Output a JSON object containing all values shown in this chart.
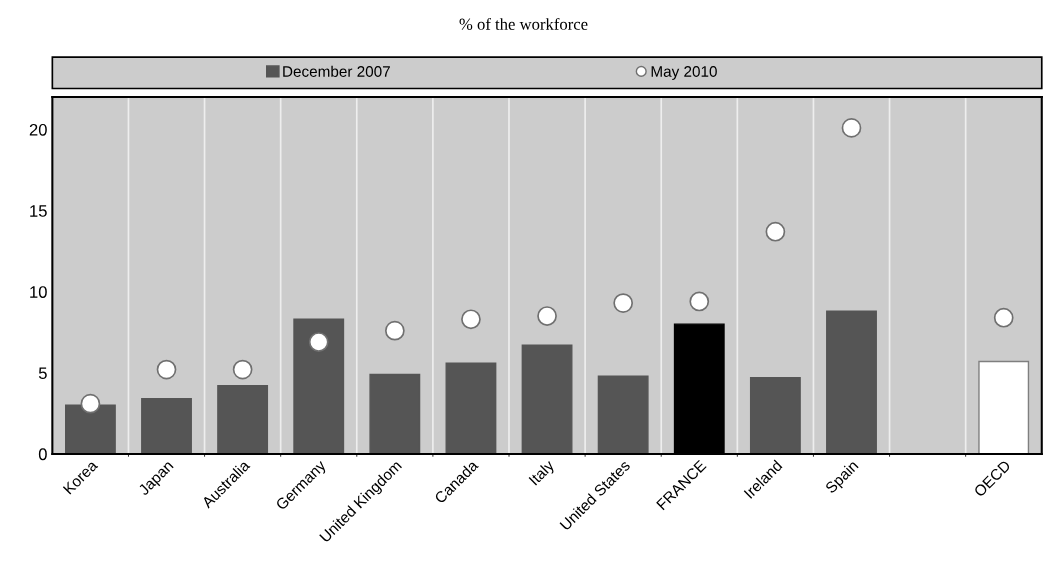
{
  "chart_data": {
    "type": "bar",
    "title": "% of the workforce",
    "categories": [
      "Korea",
      "Japan",
      "Australia",
      "Germany",
      "United Kingdom",
      "Canada",
      "Italy",
      "United States",
      "FRANCE",
      "Ireland",
      "Spain",
      null,
      "OECD"
    ],
    "series": [
      {
        "name": "December 2007",
        "color": "#555555",
        "colors": [
          "#555555",
          "#555555",
          "#555555",
          "#555555",
          "#555555",
          "#555555",
          "#555555",
          "#555555",
          "#000000",
          "#555555",
          "#555555",
          "#555555",
          "#ffffff"
        ],
        "values": [
          3.0,
          3.4,
          4.2,
          8.3,
          4.9,
          5.6,
          6.7,
          4.8,
          8.0,
          4.7,
          8.8,
          null,
          5.7
        ]
      },
      {
        "name": "May 2010",
        "type": "scatter",
        "color": "#ffffff",
        "values": [
          3.1,
          5.2,
          5.2,
          6.9,
          7.6,
          8.3,
          8.5,
          9.3,
          9.4,
          13.7,
          20.1,
          null,
          8.4
        ]
      }
    ],
    "ylim": [
      0,
      22
    ],
    "yticks": [
      0,
      5,
      10,
      15,
      20
    ],
    "grid": "x",
    "legend": "top",
    "marker": "circle"
  }
}
